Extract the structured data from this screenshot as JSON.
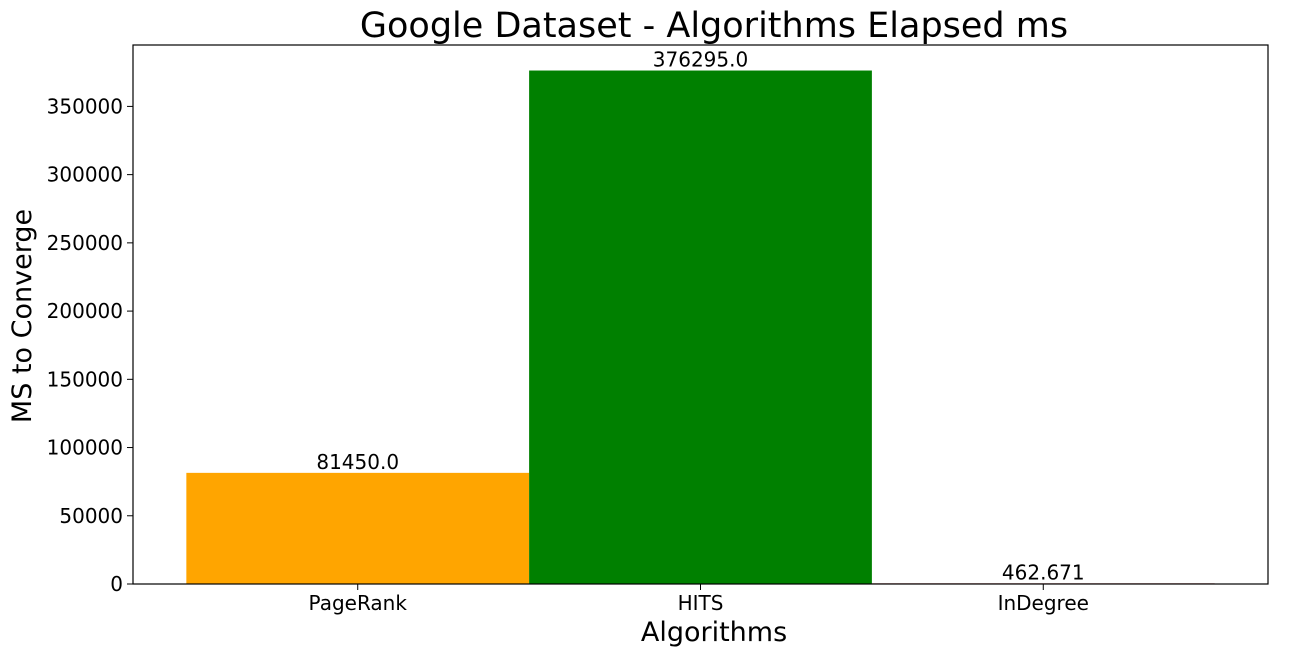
{
  "chart_data": {
    "type": "bar",
    "title": "Google Dataset - Algorithms Elapsed ms",
    "xlabel": "Algorithms",
    "ylabel": "MS to Converge",
    "categories": [
      "PageRank",
      "HITS",
      "InDegree"
    ],
    "values": [
      81450.0,
      376295.0,
      462.671
    ],
    "value_labels": [
      "81450.0",
      "376295.0",
      "462.671"
    ],
    "colors": [
      "#ffa500",
      "#008000",
      "#8b0000"
    ],
    "ylim": [
      0,
      395000
    ],
    "yticks": [
      0,
      50000,
      100000,
      150000,
      200000,
      250000,
      300000,
      350000
    ],
    "ytick_labels": [
      "0",
      "50000",
      "100000",
      "150000",
      "200000",
      "250000",
      "300000",
      "350000"
    ],
    "grid": false,
    "legend": false
  }
}
